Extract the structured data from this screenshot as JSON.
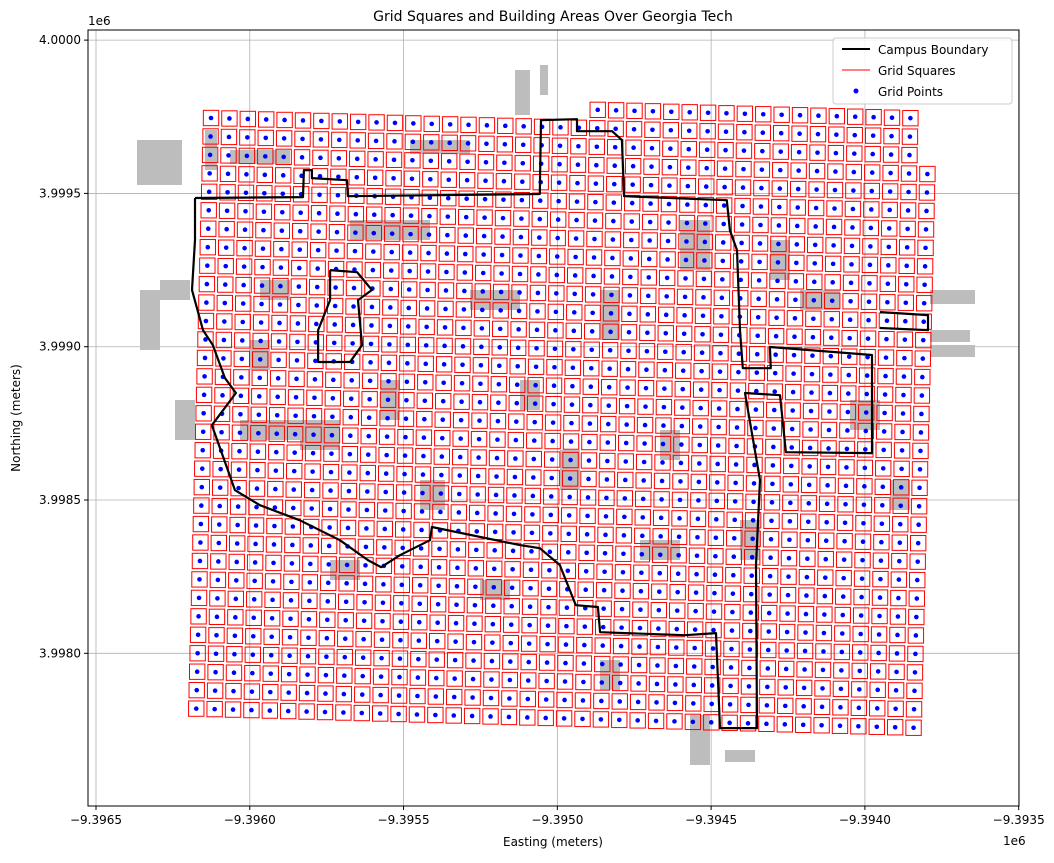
{
  "chart_data": {
    "type": "scatter",
    "title": "Grid Squares and Building Areas Over Georgia Tech",
    "xlabel": "Easting (meters)",
    "ylabel": "Northing (meters)",
    "x_offset_label": "1e6",
    "y_offset_label": "1e6",
    "xlim": [
      -9396526,
      -9393499
    ],
    "ylim": [
      3997502,
      4000033
    ],
    "xticks": [
      -9396500,
      -9396000,
      -9395500,
      -9395000,
      -9394500,
      -9394000,
      -9393500
    ],
    "xtick_labels": [
      "−9.3965",
      "−9.3960",
      "−9.3955",
      "−9.3950",
      "−9.3945",
      "−9.3940",
      "−9.3935"
    ],
    "yticks": [
      4000000,
      3999500,
      3999000,
      3998500,
      3998000
    ],
    "ytick_labels": [
      "4.0000",
      "3.9995",
      "3.9990",
      "3.9985",
      "3.9980"
    ],
    "grid": true,
    "legend": {
      "placement": "top-right",
      "entries": [
        {
          "label": "Campus Boundary",
          "color": "#000000",
          "marker": "line-thick"
        },
        {
          "label": "Grid Squares",
          "color": "#ff0000",
          "marker": "line-thin"
        },
        {
          "label": "Grid Points",
          "color": "#0000ff",
          "marker": "dot"
        }
      ]
    },
    "colors": {
      "boundary": "#000000",
      "squares": "#ff0000",
      "points": "#0000ff",
      "buildings": "#bdbdbd"
    },
    "grid_points": {
      "origin": [
        -9396126,
        3999746
      ],
      "col_step": [
        59.8,
        -1.6
      ],
      "row_step": [
        -1.5,
        -60.2
      ],
      "square_size": 50,
      "rows": [
        {
          "row": 0,
          "cols": [
            21,
            38
          ]
        },
        {
          "row": 1,
          "cols": [
            0,
            38
          ]
        },
        {
          "row": 2,
          "cols": [
            0,
            38
          ]
        },
        {
          "row_range": [
            3,
            33
          ],
          "cols": [
            0,
            39
          ]
        }
      ]
    },
    "campus_boundary": [
      [
        [
          -9396178,
          3999485
        ],
        [
          -9395827,
          3999488
        ],
        [
          -9395824,
          3999576
        ],
        [
          -9395798,
          3999576
        ],
        [
          -9395798,
          3999550
        ],
        [
          -9395684,
          3999543
        ],
        [
          -9395681,
          3999491
        ],
        [
          -9395057,
          3999498
        ],
        [
          -9395053,
          3999739
        ],
        [
          -9394936,
          3999742
        ],
        [
          -9394936,
          3999703
        ],
        [
          -9394822,
          3999703
        ],
        [
          -9394790,
          3999674
        ],
        [
          -9394783,
          3999491
        ],
        [
          -9394449,
          3999478
        ],
        [
          -9394439,
          3999380
        ],
        [
          -9394416,
          3999315
        ],
        [
          -9394406,
          3999054
        ],
        [
          -9394397,
          3998930
        ],
        [
          -9394306,
          3998930
        ],
        [
          -9394309,
          3998999
        ],
        [
          -9393977,
          3998973
        ],
        [
          -9393977,
          3998653
        ],
        [
          -9394257,
          3998656
        ],
        [
          -9394276,
          3998842
        ],
        [
          -9394390,
          3998849
        ],
        [
          -9394341,
          3998565
        ],
        [
          -9394354,
          3998288
        ],
        [
          -9394351,
          3997756
        ],
        [
          -9394471,
          3997756
        ],
        [
          -9394484,
          3998066
        ],
        [
          -9394585,
          3998059
        ],
        [
          -9394861,
          3998069
        ],
        [
          -9394868,
          3998151
        ],
        [
          -9394940,
          3998157
        ],
        [
          -9394992,
          3998288
        ],
        [
          -9395057,
          3998343
        ],
        [
          -9395122,
          3998353
        ],
        [
          -9395408,
          3998412
        ],
        [
          -9395414,
          3998369
        ],
        [
          -9395512,
          3998320
        ],
        [
          -9395573,
          3998281
        ],
        [
          -9395616,
          3998304
        ],
        [
          -9395707,
          3998369
        ],
        [
          -9395837,
          3998434
        ],
        [
          -9395967,
          3998483
        ],
        [
          -9396048,
          3998532
        ],
        [
          -9396123,
          3998744
        ],
        [
          -9396045,
          3998849
        ],
        [
          -9396081,
          3998898
        ],
        [
          -9396120,
          3999005
        ],
        [
          -9396152,
          3999054
        ],
        [
          -9396188,
          3999185
        ],
        [
          -9396178,
          3999348
        ],
        [
          -9396178,
          3999485
        ]
      ],
      [
        [
          -9395739,
          3999250
        ],
        [
          -9395651,
          3999243
        ],
        [
          -9395603,
          3999185
        ],
        [
          -9395648,
          3999152
        ],
        [
          -9395635,
          3999005
        ],
        [
          -9395674,
          3998950
        ],
        [
          -9395778,
          3998950
        ],
        [
          -9395778,
          3999054
        ],
        [
          -9395739,
          3999152
        ],
        [
          -9395739,
          3999250
        ]
      ],
      [
        [
          -9393951,
          3999113
        ],
        [
          -9393795,
          3999103
        ],
        [
          -9393795,
          3999054
        ],
        [
          -9393951,
          3999061
        ]
      ]
    ]
  }
}
